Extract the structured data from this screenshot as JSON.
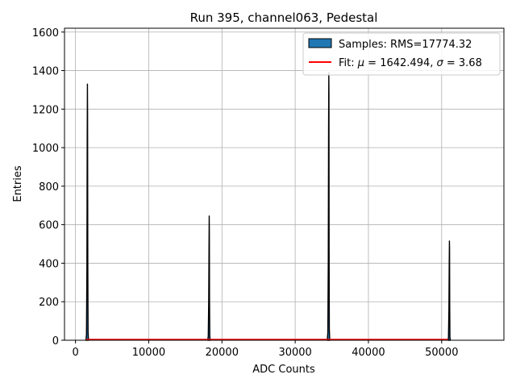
{
  "chart_data": {
    "type": "histogram",
    "title": "Run 395, channel063, Pedestal",
    "xlabel": "ADC Counts",
    "ylabel": "Entries",
    "xlim": [
      -1500,
      58500
    ],
    "ylim": [
      0,
      1620
    ],
    "xticks": [
      0,
      10000,
      20000,
      30000,
      40000,
      50000
    ],
    "xtick_labels": [
      "0",
      "10000",
      "20000",
      "30000",
      "40000",
      "50000"
    ],
    "yticks": [
      0,
      200,
      400,
      600,
      800,
      1000,
      1200,
      1400,
      1600
    ],
    "ytick_labels": [
      "0",
      "200",
      "400",
      "600",
      "800",
      "1000",
      "1200",
      "1400",
      "1600"
    ],
    "grid": true,
    "legend_position": "upper right",
    "series": [
      {
        "name": "Samples: RMS=17774.32",
        "kind": "histogram",
        "face_color": "#1f77b4",
        "edge_color": "#000000",
        "bins_x": [
          1420,
          1500,
          1560,
          1600,
          1630,
          1650,
          1680,
          1720,
          1780,
          18050,
          18130,
          18190,
          18230,
          18260,
          18280,
          18300,
          18340,
          18400,
          34380,
          34460,
          34520,
          34560,
          34590,
          34610,
          34630,
          34660,
          34720,
          50860,
          50930,
          50990,
          51030,
          51060,
          51080,
          51100,
          51130,
          51190
        ],
        "bins_y": [
          0,
          30,
          380,
          1050,
          1330,
          1180,
          420,
          40,
          0,
          0,
          20,
          200,
          470,
          645,
          560,
          210,
          20,
          0,
          0,
          40,
          420,
          1100,
          1390,
          1280,
          480,
          60,
          0,
          0,
          15,
          160,
          380,
          515,
          470,
          180,
          15,
          0
        ]
      },
      {
        "name": "Fit: $\\mu$ = 1642.494, $\\sigma$ = 3.68",
        "kind": "line",
        "color": "#ff0000",
        "x": [
          1420,
          50900
        ],
        "y": [
          0,
          0
        ]
      }
    ],
    "legend": [
      {
        "label_parts": [
          "Samples: RMS=17774.32"
        ]
      },
      {
        "label_parts": [
          "Fit: ",
          "μ",
          " = 1642.494, ",
          "σ",
          " = 3.68"
        ]
      }
    ]
  }
}
